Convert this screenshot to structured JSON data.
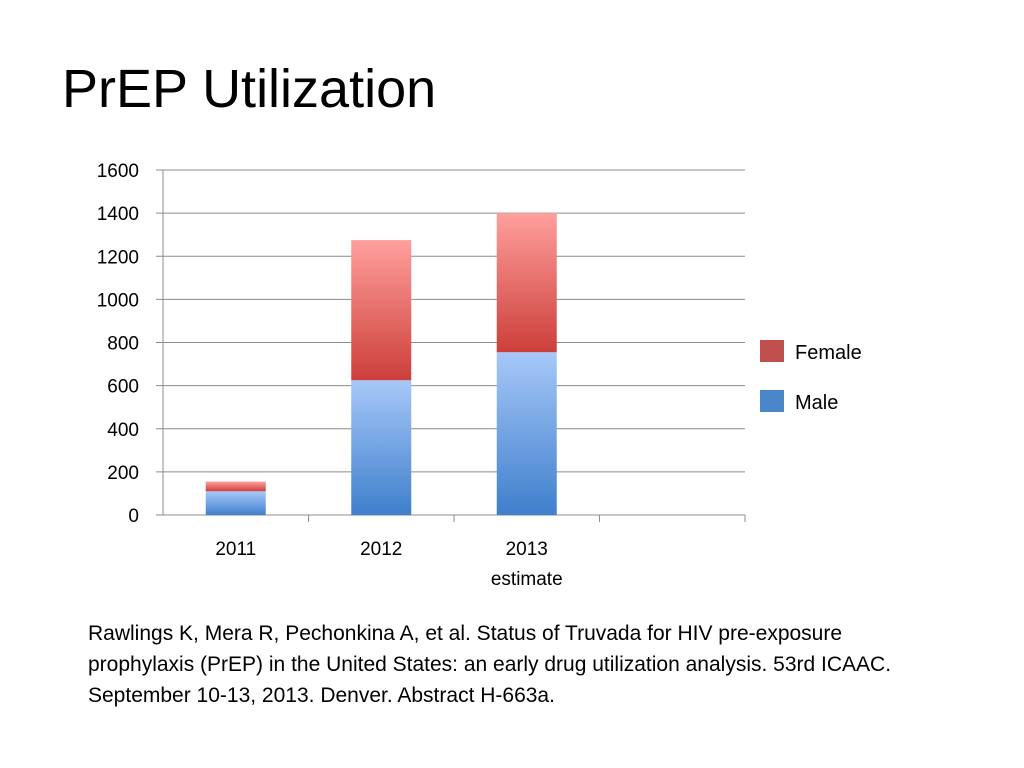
{
  "title": "PrEP Utilization",
  "chart_data": {
    "type": "bar",
    "stacked": true,
    "categories": [
      "2011",
      "2012",
      "2013\nestimate"
    ],
    "series": [
      {
        "name": "Male",
        "values": [
          110,
          625,
          755
        ],
        "color": "#4a86c8"
      },
      {
        "name": "Female",
        "values": [
          45,
          650,
          645
        ],
        "color": "#c0504d"
      }
    ],
    "ylim": [
      0,
      1600
    ],
    "yticks": [
      0,
      200,
      400,
      600,
      800,
      1000,
      1200,
      1400,
      1600
    ],
    "grid": true,
    "legend": {
      "position": "right",
      "order": [
        "Female",
        "Male"
      ]
    },
    "xlabel": "",
    "ylabel": ""
  },
  "citation": "Rawlings K, Mera R, Pechonkina A, et al. Status of Truvada for HIV pre-exposure prophylaxis (PrEP) in the United States: an early drug utilization analysis. 53rd ICAAC. September 10-13, 2013. Denver. Abstract H-663a."
}
